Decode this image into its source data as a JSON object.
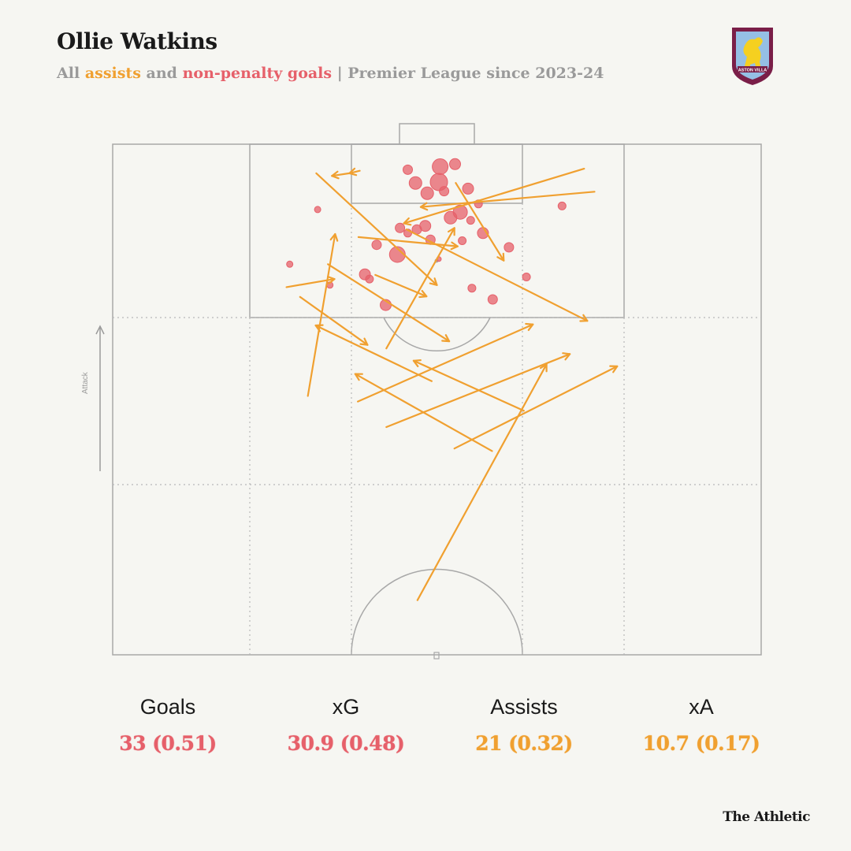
{
  "header": {
    "title": "Ollie Watkins",
    "subtitle_prefix": "All",
    "subtitle_assists": "assists",
    "subtitle_and": "and",
    "subtitle_goals": "non-penalty goals",
    "subtitle_suffix": "| Premier League since 2023-24"
  },
  "crest": {
    "text": "ASTON VILLA",
    "colors": {
      "claret": "#7a1e48",
      "blue": "#95bfe5",
      "gold": "#f5d020"
    }
  },
  "pitch": {
    "attack_label": "Attack"
  },
  "colors": {
    "goals": "#e6606a",
    "assists": "#f0a030",
    "lines": "#9a9a9a"
  },
  "chart_data": {
    "type": "scatter",
    "pitch_units": "opta 0-100 (x: width left-to-right, y: length, 100 = opponent goal line)",
    "goals": [
      {
        "x": 45.5,
        "y": 95,
        "r": 6
      },
      {
        "x": 50.5,
        "y": 95.6,
        "r": 10
      },
      {
        "x": 52.8,
        "y": 96.1,
        "r": 7
      },
      {
        "x": 46.7,
        "y": 92.4,
        "r": 8
      },
      {
        "x": 48.5,
        "y": 90.4,
        "r": 8
      },
      {
        "x": 50.3,
        "y": 92.6,
        "r": 11
      },
      {
        "x": 51.1,
        "y": 90.8,
        "r": 6
      },
      {
        "x": 54.8,
        "y": 91.3,
        "r": 7
      },
      {
        "x": 56.4,
        "y": 88.3,
        "r": 5
      },
      {
        "x": 53.6,
        "y": 86.7,
        "r": 9
      },
      {
        "x": 55.2,
        "y": 85.1,
        "r": 5
      },
      {
        "x": 52.1,
        "y": 85.6,
        "r": 8
      },
      {
        "x": 48.2,
        "y": 84,
        "r": 7
      },
      {
        "x": 46.9,
        "y": 83.3,
        "r": 6
      },
      {
        "x": 45.5,
        "y": 82.6,
        "r": 5
      },
      {
        "x": 44.3,
        "y": 83.6,
        "r": 6
      },
      {
        "x": 49,
        "y": 81.3,
        "r": 6
      },
      {
        "x": 53.9,
        "y": 81.1,
        "r": 5
      },
      {
        "x": 40.7,
        "y": 80.3,
        "r": 6
      },
      {
        "x": 57.1,
        "y": 82.6,
        "r": 7
      },
      {
        "x": 43.9,
        "y": 78.4,
        "r": 10
      },
      {
        "x": 61.1,
        "y": 79.8,
        "r": 6
      },
      {
        "x": 38.9,
        "y": 74.5,
        "r": 7
      },
      {
        "x": 39.6,
        "y": 73.6,
        "r": 5
      },
      {
        "x": 55.4,
        "y": 71.8,
        "r": 5
      },
      {
        "x": 58.6,
        "y": 69.6,
        "r": 6
      },
      {
        "x": 42.1,
        "y": 68.5,
        "r": 7
      },
      {
        "x": 31.6,
        "y": 87.2,
        "r": 4
      },
      {
        "x": 27.3,
        "y": 76.5,
        "r": 4
      },
      {
        "x": 33.5,
        "y": 72.4,
        "r": 4
      },
      {
        "x": 69.3,
        "y": 87.9,
        "r": 5
      },
      {
        "x": 63.8,
        "y": 74,
        "r": 5
      },
      {
        "x": 50.3,
        "y": 77.5,
        "r": 3
      }
    ],
    "assists": [
      {
        "x1": 31.4,
        "y1": 94.3,
        "x2": 50,
        "y2": 72.4
      },
      {
        "x1": 36.5,
        "y1": 94.3,
        "x2": 33.8,
        "y2": 93.8
      },
      {
        "x1": 38.1,
        "y1": 94.8,
        "x2": 36.5,
        "y2": 94.3
      },
      {
        "x1": 72.7,
        "y1": 95.2,
        "x2": 44.9,
        "y2": 84.5
      },
      {
        "x1": 74.3,
        "y1": 90.7,
        "x2": 47.5,
        "y2": 87.7
      },
      {
        "x1": 52.9,
        "y1": 92.4,
        "x2": 60.3,
        "y2": 77.2
      },
      {
        "x1": 37.9,
        "y1": 81.8,
        "x2": 53.2,
        "y2": 80
      },
      {
        "x1": 45.3,
        "y1": 83.3,
        "x2": 73.2,
        "y2": 65.4
      },
      {
        "x1": 26.8,
        "y1": 72,
        "x2": 34.2,
        "y2": 73.6
      },
      {
        "x1": 40.5,
        "y1": 74.4,
        "x2": 48.4,
        "y2": 70.2
      },
      {
        "x1": 30.1,
        "y1": 50.7,
        "x2": 34.3,
        "y2": 82.4
      },
      {
        "x1": 28.9,
        "y1": 70.1,
        "x2": 39.3,
        "y2": 60.7
      },
      {
        "x1": 33.2,
        "y1": 76.5,
        "x2": 51.9,
        "y2": 61.4
      },
      {
        "x1": 42.2,
        "y1": 60,
        "x2": 52.7,
        "y2": 83.6
      },
      {
        "x1": 49.2,
        "y1": 53.6,
        "x2": 31.3,
        "y2": 64.5
      },
      {
        "x1": 37.8,
        "y1": 49.6,
        "x2": 64.8,
        "y2": 64.7
      },
      {
        "x1": 42.2,
        "y1": 44.6,
        "x2": 70.5,
        "y2": 58.9
      },
      {
        "x1": 58.5,
        "y1": 39.9,
        "x2": 37.4,
        "y2": 55
      },
      {
        "x1": 63.4,
        "y1": 47.8,
        "x2": 46.4,
        "y2": 57.6
      },
      {
        "x1": 52.7,
        "y1": 40.4,
        "x2": 77.8,
        "y2": 56.5
      },
      {
        "x1": 47,
        "y1": 10.7,
        "x2": 66.9,
        "y2": 56.9
      }
    ]
  },
  "stats": [
    {
      "label": "Goals",
      "value": "33 (0.51)",
      "tone": "red"
    },
    {
      "label": "xG",
      "value": "30.9 (0.48)",
      "tone": "red"
    },
    {
      "label": "Assists",
      "value": "21 (0.32)",
      "tone": "orange"
    },
    {
      "label": "xA",
      "value": "10.7 (0.17)",
      "tone": "orange"
    }
  ],
  "footer": {
    "brand": "The Athletic"
  }
}
